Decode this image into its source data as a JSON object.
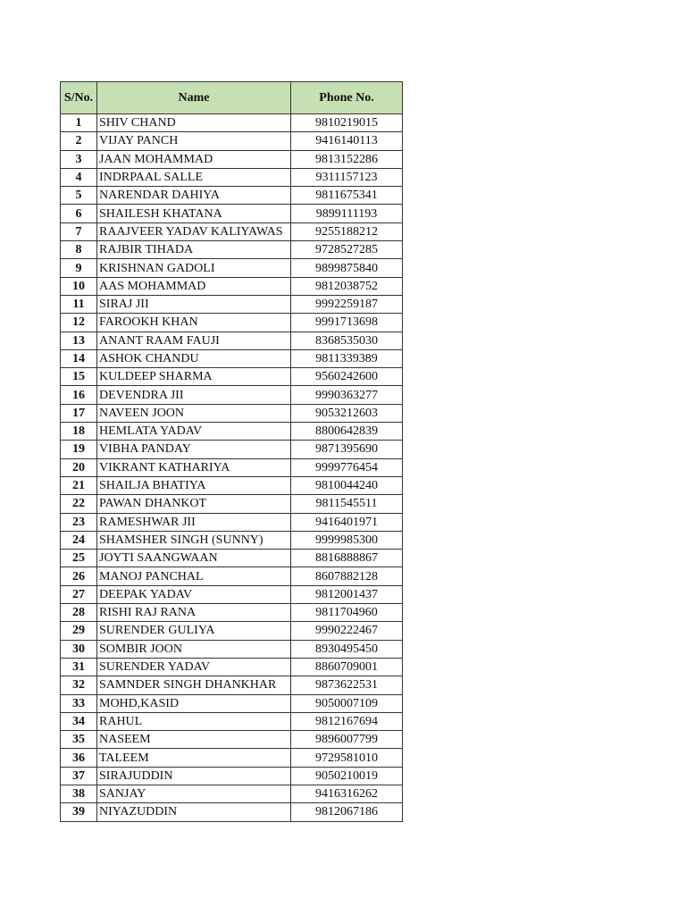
{
  "table": {
    "header_color": "#c6e0b4",
    "headers": {
      "sno": "S/No.",
      "name": "Name",
      "phone": "Phone No."
    },
    "rows": [
      {
        "sno": "1",
        "name": "SHIV CHAND",
        "phone": "9810219015"
      },
      {
        "sno": "2",
        "name": "VIJAY PANCH",
        "phone": "9416140113"
      },
      {
        "sno": "3",
        "name": "JAAN MOHAMMAD",
        "phone": "9813152286"
      },
      {
        "sno": "4",
        "name": "INDRPAAL SALLE",
        "phone": "9311157123"
      },
      {
        "sno": "5",
        "name": "NARENDAR DAHIYA",
        "phone": "9811675341"
      },
      {
        "sno": "6",
        "name": "SHAILESH KHATANA",
        "phone": "9899111193"
      },
      {
        "sno": "7",
        "name": "RAAJVEER YADAV KALIYAWAS",
        "phone": "9255188212"
      },
      {
        "sno": "8",
        "name": "RAJBIR TIHADA",
        "phone": "9728527285"
      },
      {
        "sno": "9",
        "name": "KRISHNAN GADOLI",
        "phone": "9899875840"
      },
      {
        "sno": "10",
        "name": "AAS MOHAMMAD",
        "phone": "9812038752"
      },
      {
        "sno": "11",
        "name": "SIRAJ JII",
        "phone": "9992259187"
      },
      {
        "sno": "12",
        "name": "FAROOKH KHAN",
        "phone": "9991713698"
      },
      {
        "sno": "13",
        "name": "ANANT RAAM FAUJI",
        "phone": "8368535030"
      },
      {
        "sno": "14",
        "name": "ASHOK CHANDU",
        "phone": "9811339389"
      },
      {
        "sno": "15",
        "name": "KULDEEP SHARMA",
        "phone": "9560242600"
      },
      {
        "sno": "16",
        "name": "DEVENDRA JII",
        "phone": "9990363277"
      },
      {
        "sno": "17",
        "name": "NAVEEN JOON",
        "phone": "9053212603"
      },
      {
        "sno": "18",
        "name": "HEMLATA YADAV",
        "phone": "8800642839"
      },
      {
        "sno": "19",
        "name": "VIBHA PANDAY",
        "phone": "9871395690"
      },
      {
        "sno": "20",
        "name": "VIKRANT KATHARIYA",
        "phone": "9999776454"
      },
      {
        "sno": "21",
        "name": "SHAILJA BHATIYA",
        "phone": "9810044240"
      },
      {
        "sno": "22",
        "name": "PAWAN DHANKOT",
        "phone": "9811545511"
      },
      {
        "sno": "23",
        "name": "RAMESHWAR JII",
        "phone": "9416401971"
      },
      {
        "sno": "24",
        "name": "SHAMSHER SINGH (SUNNY)",
        "phone": "9999985300"
      },
      {
        "sno": "25",
        "name": "JOYTI SAANGWAAN",
        "phone": "8816888867"
      },
      {
        "sno": "26",
        "name": "MANOJ PANCHAL",
        "phone": "8607882128"
      },
      {
        "sno": "27",
        "name": "DEEPAK YADAV",
        "phone": "9812001437"
      },
      {
        "sno": "28",
        "name": "RISHI RAJ RANA",
        "phone": "9811704960"
      },
      {
        "sno": "29",
        "name": "SURENDER GULIYA",
        "phone": "9990222467"
      },
      {
        "sno": "30",
        "name": "SOMBIR JOON",
        "phone": "8930495450"
      },
      {
        "sno": "31",
        "name": "SURENDER YADAV",
        "phone": "8860709001"
      },
      {
        "sno": "32",
        "name": "SAMNDER SINGH DHANKHAR",
        "phone": "9873622531"
      },
      {
        "sno": "33",
        "name": "MOHD,KASID",
        "phone": "9050007109"
      },
      {
        "sno": "34",
        "name": "RAHUL",
        "phone": "9812167694"
      },
      {
        "sno": "35",
        "name": "NASEEM",
        "phone": "9896007799"
      },
      {
        "sno": "36",
        "name": "TALEEM",
        "phone": "9729581010"
      },
      {
        "sno": "37",
        "name": "SIRAJUDDIN",
        "phone": "9050210019"
      },
      {
        "sno": "38",
        "name": "SANJAY",
        "phone": "9416316262"
      },
      {
        "sno": "39",
        "name": "NIYAZUDDIN",
        "phone": "9812067186"
      }
    ]
  }
}
